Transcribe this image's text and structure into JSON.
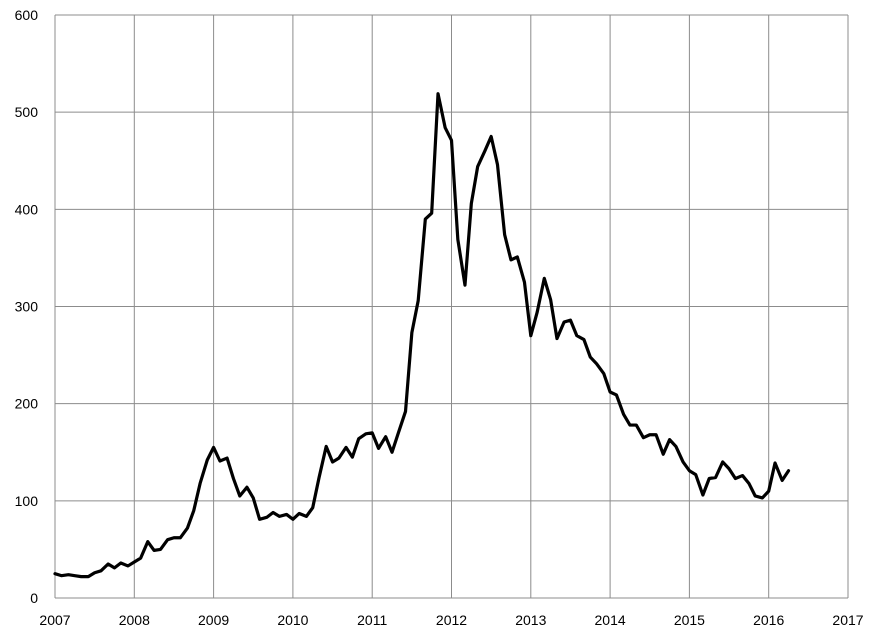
{
  "chart_data": {
    "type": "line",
    "title": "",
    "xlabel": "",
    "ylabel": "",
    "xlim": [
      2007,
      2017
    ],
    "ylim": [
      0,
      600
    ],
    "x_ticks": [
      "2007",
      "2008",
      "2009",
      "2010",
      "2011",
      "2012",
      "2013",
      "2014",
      "2015",
      "2016",
      "2017"
    ],
    "y_ticks": [
      "0",
      "100",
      "200",
      "300",
      "400",
      "500",
      "600"
    ],
    "grid": true,
    "legend": "none",
    "series": [
      {
        "line_color": "#000000",
        "x": [
          2007.0,
          2007.08,
          2007.17,
          2007.25,
          2007.33,
          2007.42,
          2007.5,
          2007.58,
          2007.67,
          2007.75,
          2007.83,
          2007.92,
          2008.0,
          2008.08,
          2008.17,
          2008.25,
          2008.33,
          2008.42,
          2008.5,
          2008.58,
          2008.67,
          2008.75,
          2008.83,
          2008.92,
          2009.0,
          2009.08,
          2009.17,
          2009.25,
          2009.33,
          2009.42,
          2009.5,
          2009.58,
          2009.67,
          2009.75,
          2009.83,
          2009.92,
          2010.0,
          2010.08,
          2010.17,
          2010.25,
          2010.33,
          2010.42,
          2010.5,
          2010.58,
          2010.67,
          2010.75,
          2010.83,
          2010.92,
          2011.0,
          2011.08,
          2011.17,
          2011.25,
          2011.33,
          2011.42,
          2011.5,
          2011.58,
          2011.67,
          2011.75,
          2011.83,
          2011.92,
          2012.0,
          2012.08,
          2012.17,
          2012.25,
          2012.33,
          2012.42,
          2012.5,
          2012.58,
          2012.67,
          2012.75,
          2012.83,
          2012.92,
          2013.0,
          2013.08,
          2013.17,
          2013.25,
          2013.33,
          2013.42,
          2013.5,
          2013.58,
          2013.67,
          2013.75,
          2013.83,
          2013.92,
          2014.0,
          2014.08,
          2014.17,
          2014.25,
          2014.33,
          2014.42,
          2014.5,
          2014.58,
          2014.67,
          2014.75,
          2014.83,
          2014.92,
          2015.0,
          2015.08,
          2015.17,
          2015.25,
          2015.33,
          2015.42,
          2015.5,
          2015.58,
          2015.67,
          2015.75,
          2015.83,
          2015.92,
          2016.0,
          2016.08,
          2016.17,
          2016.25
        ],
        "y": [
          25,
          23,
          24,
          23,
          22,
          22,
          26,
          28,
          35,
          31,
          36,
          33,
          37,
          41,
          58,
          49,
          50,
          60,
          62,
          62,
          72,
          90,
          118,
          142,
          155,
          141,
          144,
          123,
          105,
          114,
          103,
          81,
          83,
          88,
          84,
          86,
          81,
          87,
          84,
          93,
          124,
          156,
          140,
          144,
          155,
          145,
          164,
          169,
          170,
          154,
          166,
          150,
          170,
          192,
          273,
          306,
          390,
          396,
          519,
          484,
          471,
          369,
          322,
          406,
          444,
          460,
          475,
          446,
          374,
          348,
          351,
          325,
          270,
          294,
          329,
          307,
          267,
          284,
          286,
          270,
          266,
          248,
          241,
          231,
          212,
          209,
          189,
          178,
          178,
          165,
          168,
          168,
          148,
          163,
          156,
          140,
          131,
          127,
          106,
          123,
          124,
          140,
          133,
          123,
          126,
          118,
          105,
          103,
          110,
          139,
          121,
          131
        ]
      }
    ]
  }
}
